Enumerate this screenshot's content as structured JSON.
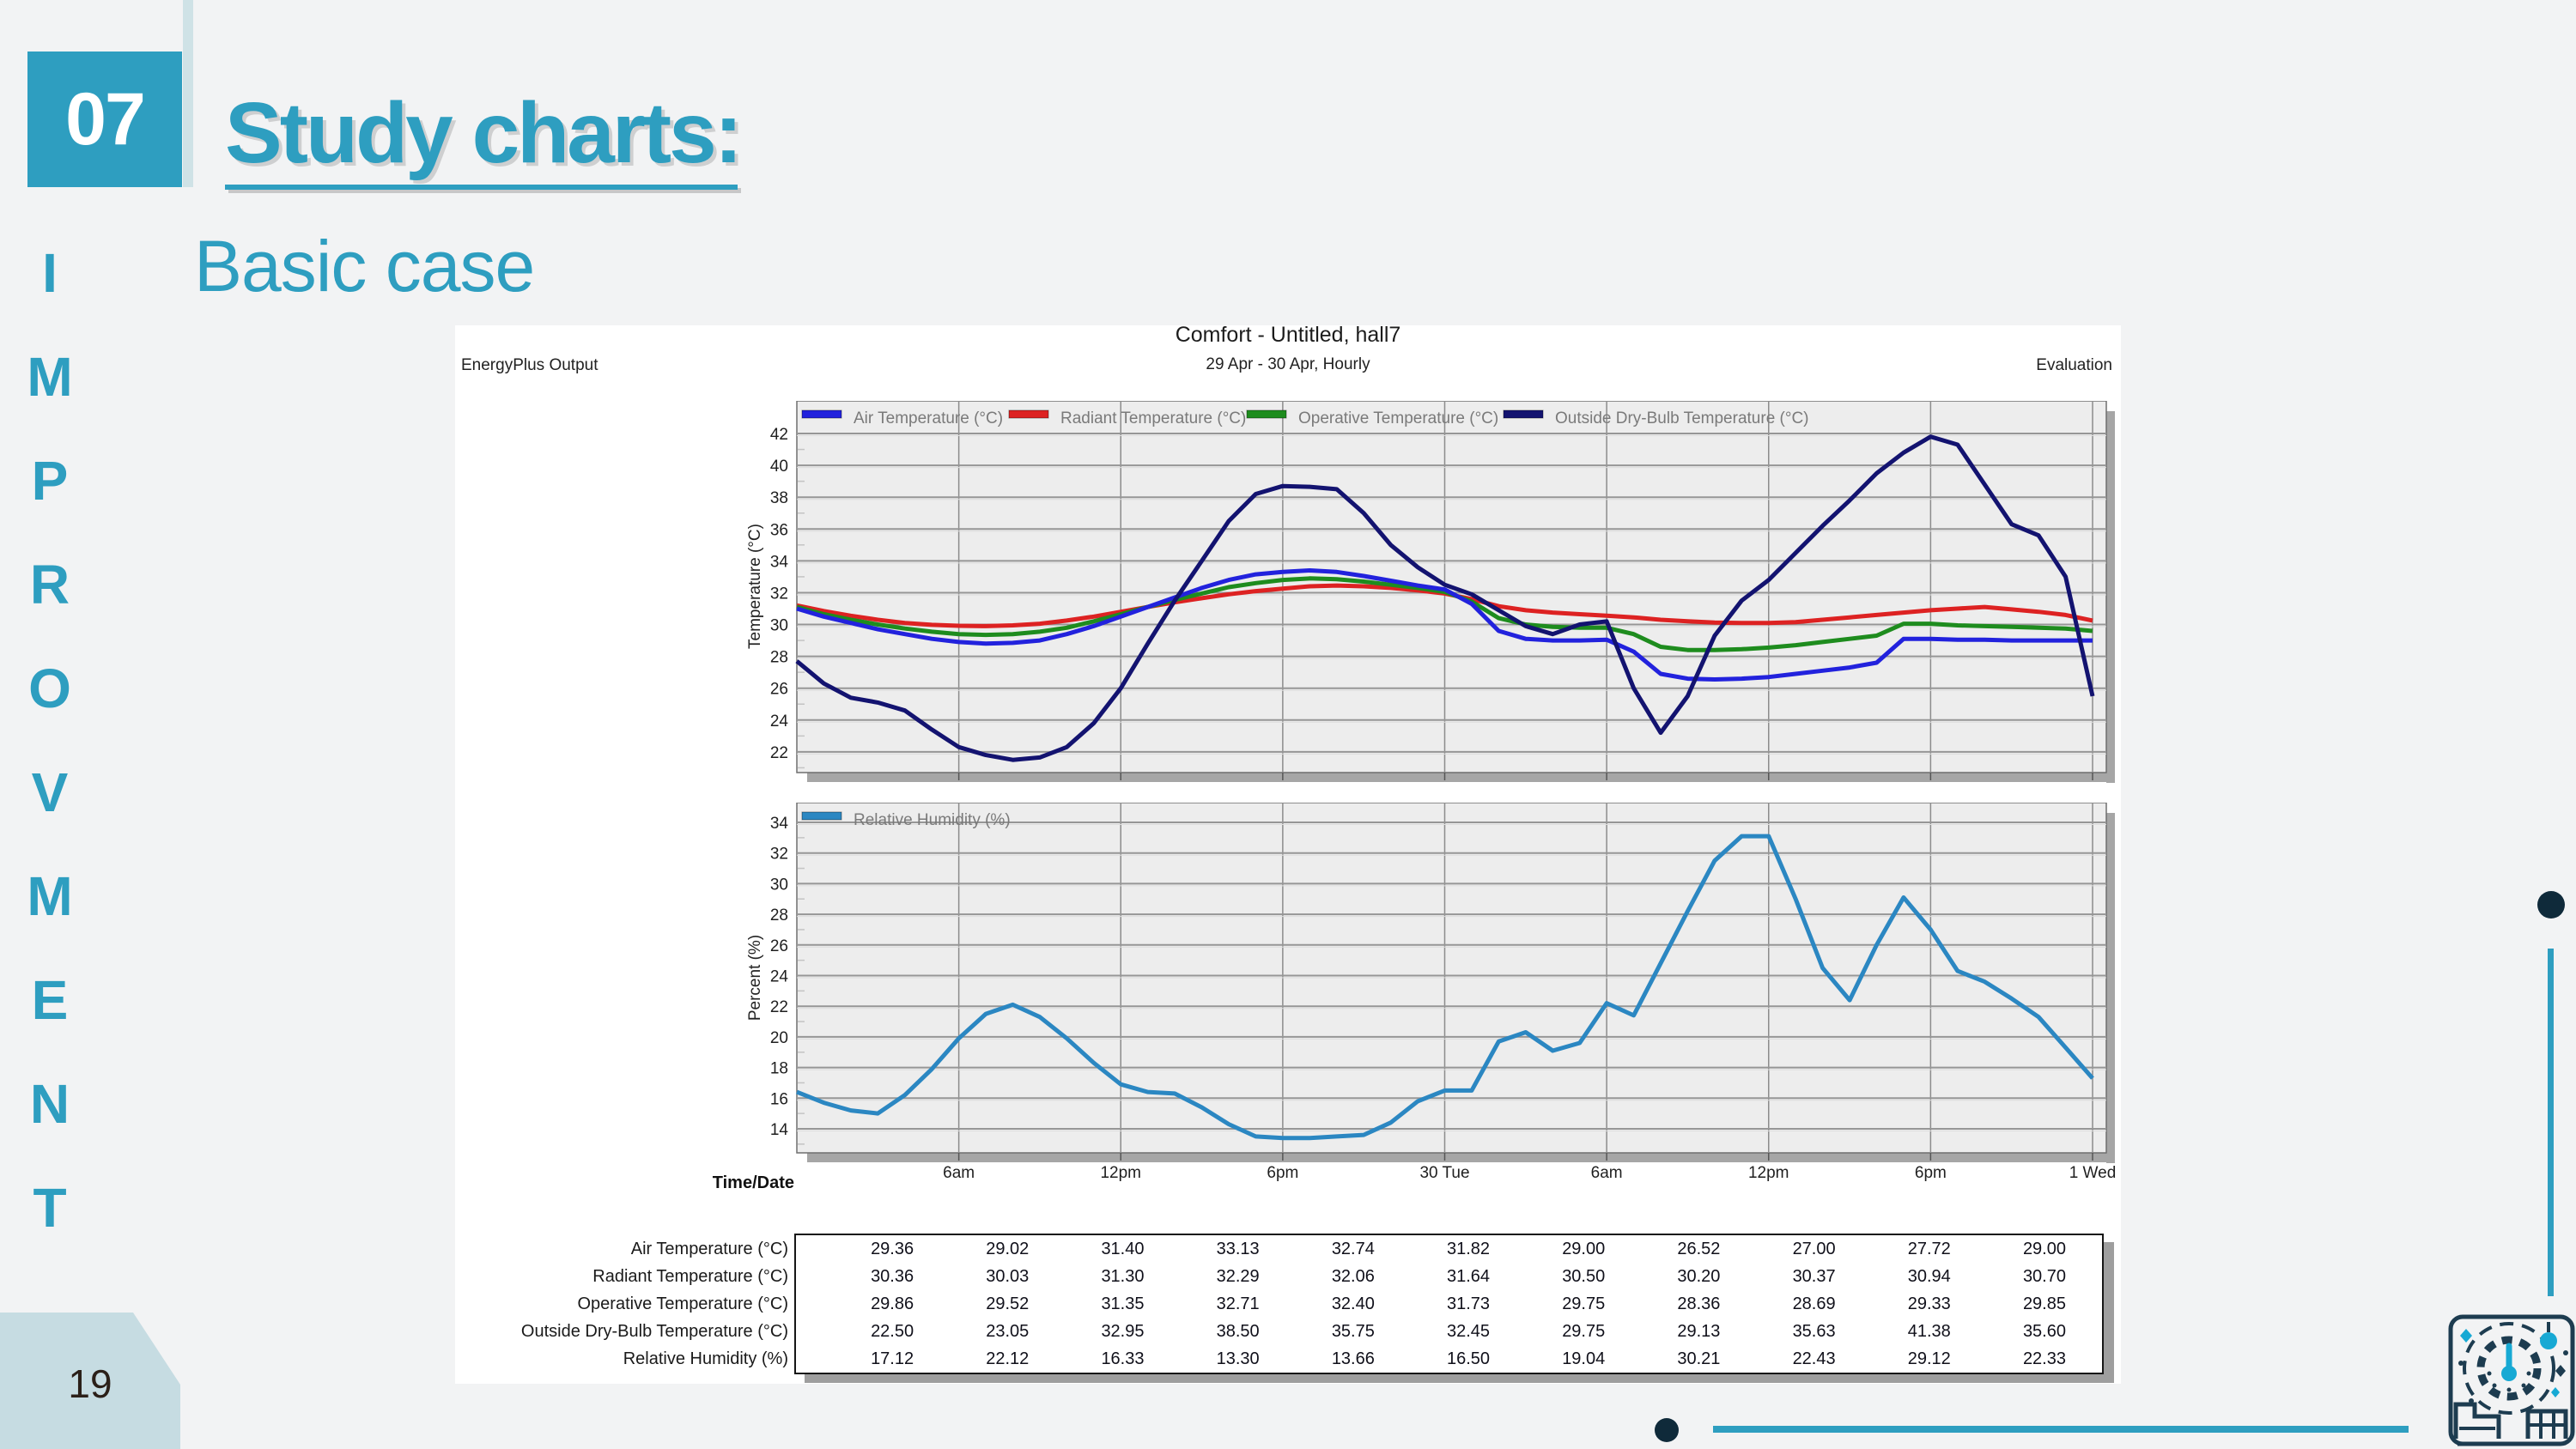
{
  "slide": {
    "section_number": "07",
    "title": "Study charts:",
    "subtitle": "Basic case",
    "vertical_text": "IMPROVMENT",
    "page_number": "19",
    "accent_color": "#2e9ec0",
    "light_accent_color": "#cfe2e6",
    "badge_color": "#c6dce2",
    "dark_dot_color": "#0f2a3a",
    "icons": {
      "bottom_right_logo": "building-thermometer-logo-icon"
    }
  },
  "panel": {
    "title": "Comfort - Untitled, hall7",
    "subtitle": "29 Apr - 30 Apr, Hourly",
    "left_label": "EnergyPlus Output",
    "right_label": "Evaluation"
  },
  "chart_data": [
    {
      "type": "line",
      "title": "Comfort - Untitled, hall7",
      "xlabel": "Time/Date",
      "ylabel": "Temperature (°C)",
      "xlim": [
        0,
        48
      ],
      "ylim": [
        20.7,
        44.05
      ],
      "grid": true,
      "legend_position": "top-left",
      "yticks": [
        42,
        40,
        38,
        36,
        34,
        32,
        30,
        28,
        26,
        24,
        22
      ],
      "xticks": [
        {
          "pos": 6,
          "label": "6am"
        },
        {
          "pos": 12,
          "label": "12pm"
        },
        {
          "pos": 18,
          "label": "6pm"
        },
        {
          "pos": 24,
          "label": "30 Tue"
        },
        {
          "pos": 30,
          "label": "6am"
        },
        {
          "pos": 36,
          "label": "12pm"
        },
        {
          "pos": 42,
          "label": "6pm"
        },
        {
          "pos": 48,
          "label": "1 Wed"
        }
      ],
      "x_hours": [
        0,
        1,
        2,
        3,
        4,
        5,
        6,
        7,
        8,
        9,
        10,
        11,
        12,
        13,
        14,
        15,
        16,
        17,
        18,
        19,
        20,
        21,
        22,
        23,
        24,
        25,
        26,
        27,
        28,
        29,
        30,
        31,
        32,
        33,
        34,
        35,
        36,
        37,
        38,
        39,
        40,
        41,
        42,
        43,
        44,
        45,
        46,
        47,
        48
      ],
      "series": [
        {
          "name": "Radiant Temperature (°C)",
          "color": "#dd2222",
          "values": [
            31.2,
            30.85,
            30.55,
            30.3,
            30.1,
            29.98,
            29.92,
            29.9,
            29.95,
            30.05,
            30.25,
            30.5,
            30.8,
            31.1,
            31.4,
            31.65,
            31.9,
            32.1,
            32.25,
            32.4,
            32.45,
            32.4,
            32.3,
            32.15,
            31.95,
            31.6,
            31.15,
            30.9,
            30.75,
            30.65,
            30.55,
            30.45,
            30.3,
            30.2,
            30.12,
            30.1,
            30.1,
            30.15,
            30.3,
            30.45,
            30.6,
            30.75,
            30.9,
            31.0,
            31.1,
            30.95,
            30.8,
            30.6,
            30.25
          ]
        },
        {
          "name": "Operative Temperature (°C)",
          "color": "#1e8c1e",
          "values": [
            31.1,
            30.65,
            30.3,
            30.0,
            29.75,
            29.55,
            29.4,
            29.35,
            29.4,
            29.55,
            29.8,
            30.2,
            30.65,
            31.1,
            31.55,
            31.95,
            32.35,
            32.6,
            32.8,
            32.9,
            32.85,
            32.7,
            32.5,
            32.3,
            32.05,
            31.45,
            30.4,
            30.0,
            29.85,
            29.8,
            29.8,
            29.4,
            28.6,
            28.4,
            28.4,
            28.45,
            28.55,
            28.7,
            28.9,
            29.1,
            29.3,
            30.05,
            30.05,
            29.95,
            29.9,
            29.85,
            29.8,
            29.75,
            29.6
          ]
        },
        {
          "name": "Air Temperature (°C)",
          "color": "#2222dd",
          "values": [
            31.0,
            30.5,
            30.1,
            29.7,
            29.4,
            29.1,
            28.9,
            28.8,
            28.85,
            29.0,
            29.4,
            29.9,
            30.5,
            31.1,
            31.7,
            32.3,
            32.8,
            33.15,
            33.3,
            33.4,
            33.3,
            33.05,
            32.75,
            32.45,
            32.2,
            31.3,
            29.6,
            29.1,
            29.0,
            29.0,
            29.05,
            28.3,
            26.9,
            26.6,
            26.55,
            26.6,
            26.7,
            26.9,
            27.1,
            27.3,
            27.6,
            29.1,
            29.1,
            29.05,
            29.05,
            29.0,
            29.0,
            29.0,
            29.0
          ]
        },
        {
          "name": "Outside Dry-Bulb Temperature (°C)",
          "color": "#131370",
          "values": [
            27.7,
            26.3,
            25.4,
            25.1,
            24.6,
            23.4,
            22.3,
            21.8,
            21.5,
            21.65,
            22.3,
            23.8,
            26.0,
            28.8,
            31.5,
            34.0,
            36.5,
            38.2,
            38.7,
            38.65,
            38.5,
            37.0,
            35.0,
            33.6,
            32.5,
            31.9,
            30.9,
            29.9,
            29.4,
            30.0,
            30.2,
            26.0,
            23.2,
            25.5,
            29.3,
            31.5,
            32.8,
            34.5,
            36.2,
            37.8,
            39.5,
            40.8,
            41.8,
            41.3,
            38.8,
            36.3,
            35.6,
            33.0,
            25.5
          ]
        }
      ],
      "legend_order": [
        "Air Temperature (°C)",
        "Radiant Temperature (°C)",
        "Operative Temperature (°C)",
        "Outside Dry-Bulb Temperature (°C)"
      ]
    },
    {
      "type": "line",
      "title": "Relative Humidity",
      "xlabel": "Time/Date",
      "ylabel": "Percent (%)",
      "xlim": [
        0,
        48
      ],
      "ylim": [
        12.43,
        35.29
      ],
      "grid": true,
      "legend_position": "top-left",
      "yticks": [
        34,
        32,
        30,
        28,
        26,
        24,
        22,
        20,
        18,
        16,
        14
      ],
      "xticks": [
        {
          "pos": 6,
          "label": "6am"
        },
        {
          "pos": 12,
          "label": "12pm"
        },
        {
          "pos": 18,
          "label": "6pm"
        },
        {
          "pos": 24,
          "label": "30 Tue"
        },
        {
          "pos": 30,
          "label": "6am"
        },
        {
          "pos": 36,
          "label": "12pm"
        },
        {
          "pos": 42,
          "label": "6pm"
        },
        {
          "pos": 48,
          "label": "1 Wed"
        }
      ],
      "x_hours": [
        0,
        1,
        2,
        3,
        4,
        5,
        6,
        7,
        8,
        9,
        10,
        11,
        12,
        13,
        14,
        15,
        16,
        17,
        18,
        19,
        20,
        21,
        22,
        23,
        24,
        25,
        26,
        27,
        28,
        29,
        30,
        31,
        32,
        33,
        34,
        35,
        36,
        37,
        38,
        39,
        40,
        41,
        42,
        43,
        44,
        45,
        46,
        47,
        48
      ],
      "series": [
        {
          "name": "Relative Humidity (%)",
          "color": "#2b87c2",
          "values": [
            16.4,
            15.7,
            15.2,
            15.0,
            16.2,
            17.9,
            19.9,
            21.5,
            22.1,
            21.3,
            19.9,
            18.3,
            16.9,
            16.4,
            16.3,
            15.4,
            14.3,
            13.5,
            13.4,
            13.4,
            13.5,
            13.6,
            14.4,
            15.8,
            16.5,
            16.5,
            19.7,
            20.3,
            19.1,
            19.6,
            22.2,
            21.4,
            24.8,
            28.2,
            31.5,
            33.1,
            33.1,
            29.0,
            24.5,
            22.4,
            26.0,
            29.1,
            27.0,
            24.3,
            23.6,
            22.5,
            21.3,
            19.3,
            17.3
          ]
        }
      ],
      "legend_order": [
        "Relative Humidity (%)"
      ]
    }
  ],
  "table": {
    "time_date_label": "Time/Date",
    "rows": [
      {
        "label": "Air Temperature (°C)",
        "values": [
          "29.36",
          "29.02",
          "31.40",
          "33.13",
          "32.74",
          "31.82",
          "29.00",
          "26.52",
          "27.00",
          "27.72",
          "29.00"
        ]
      },
      {
        "label": "Radiant Temperature (°C)",
        "values": [
          "30.36",
          "30.03",
          "31.30",
          "32.29",
          "32.06",
          "31.64",
          "30.50",
          "30.20",
          "30.37",
          "30.94",
          "30.70"
        ]
      },
      {
        "label": "Operative Temperature (°C)",
        "values": [
          "29.86",
          "29.52",
          "31.35",
          "32.71",
          "32.40",
          "31.73",
          "29.75",
          "28.36",
          "28.69",
          "29.33",
          "29.85"
        ]
      },
      {
        "label": "Outside Dry-Bulb Temperature (°C)",
        "values": [
          "22.50",
          "23.05",
          "32.95",
          "38.50",
          "35.75",
          "32.45",
          "29.75",
          "29.13",
          "35.63",
          "41.38",
          "35.60"
        ]
      },
      {
        "label": "Relative Humidity (%)",
        "values": [
          "17.12",
          "22.12",
          "16.33",
          "13.30",
          "13.66",
          "16.50",
          "19.04",
          "30.21",
          "22.43",
          "29.12",
          "22.33"
        ]
      }
    ]
  }
}
